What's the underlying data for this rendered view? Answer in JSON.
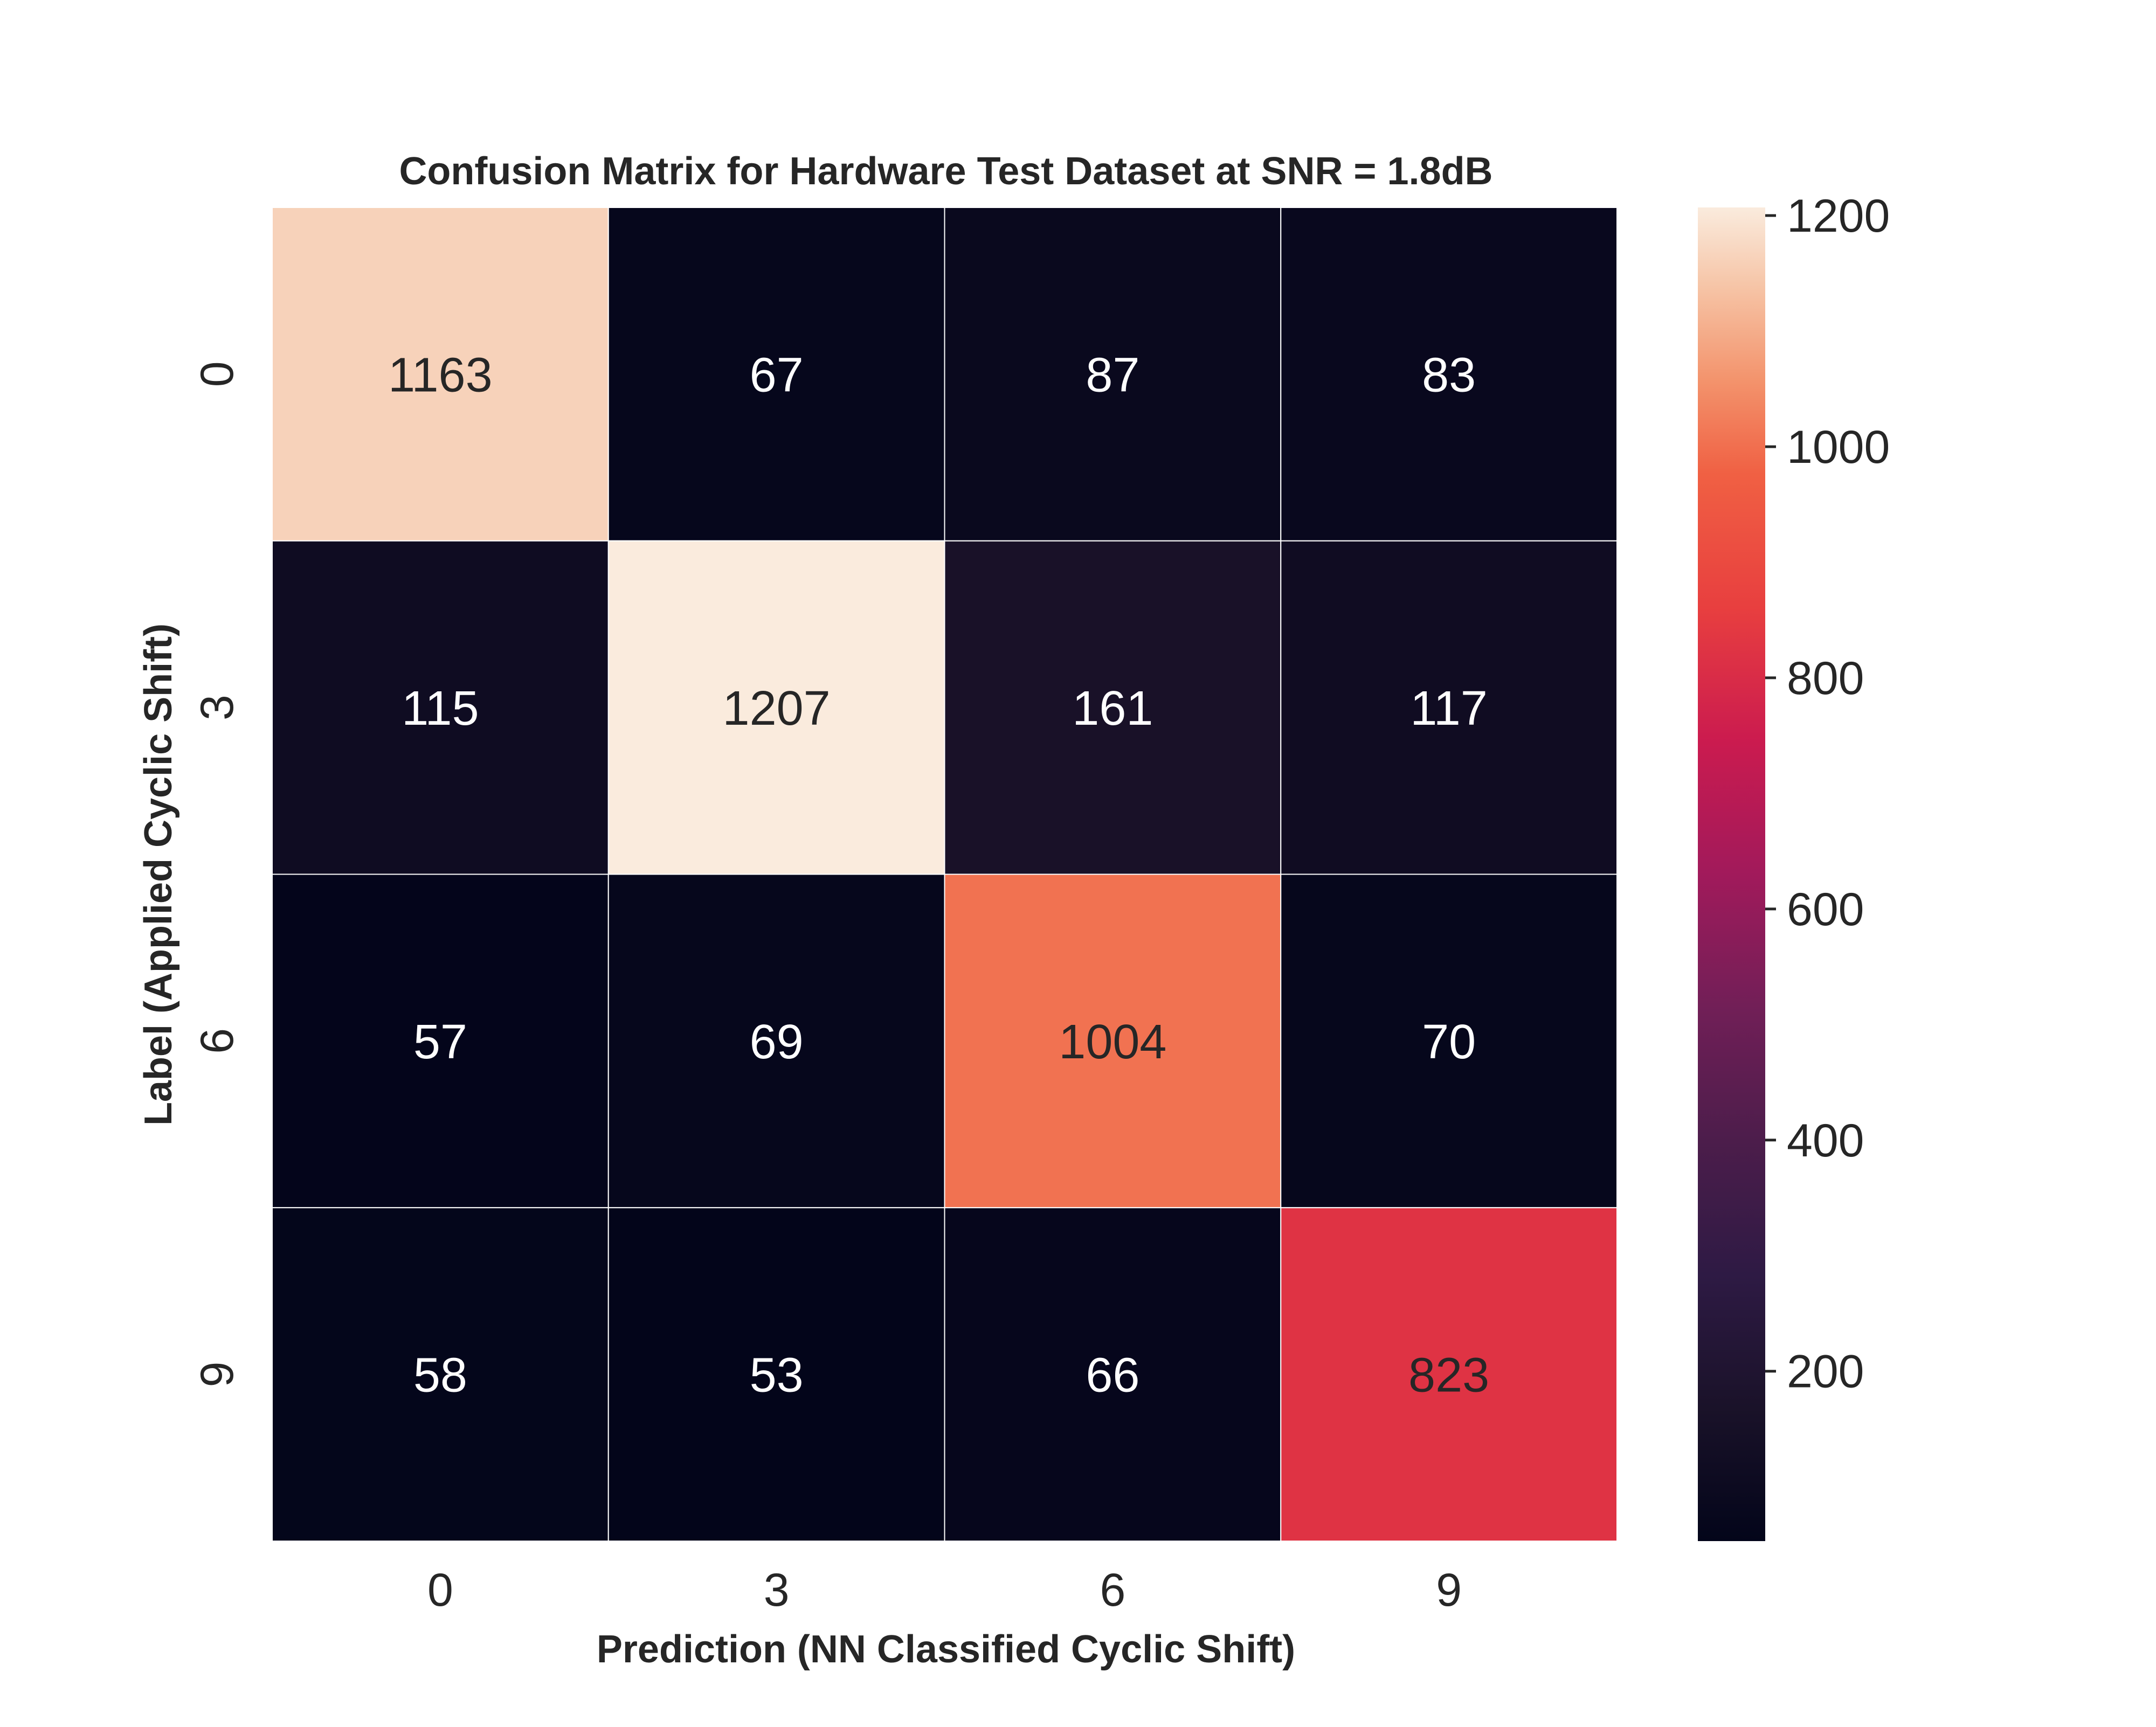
{
  "chart_data": {
    "type": "heatmap",
    "title": "Confusion Matrix for Hardware Test Dataset at SNR = 1.8dB",
    "xlabel": "Prediction (NN Classified Cyclic Shift)",
    "ylabel": "Label (Applied Cyclic Shift)",
    "x_categories": [
      "0",
      "3",
      "6",
      "9"
    ],
    "y_categories": [
      "0",
      "3",
      "6",
      "9"
    ],
    "values": [
      [
        1163,
        67,
        87,
        83
      ],
      [
        115,
        1207,
        161,
        117
      ],
      [
        57,
        69,
        1004,
        70
      ],
      [
        58,
        53,
        66,
        823
      ]
    ],
    "colorbar": {
      "min": 53,
      "max": 1207,
      "ticks": [
        200,
        400,
        600,
        800,
        1000,
        1200
      ],
      "colormap": "rocket"
    },
    "grid": true,
    "legend": "colorbar-right"
  }
}
